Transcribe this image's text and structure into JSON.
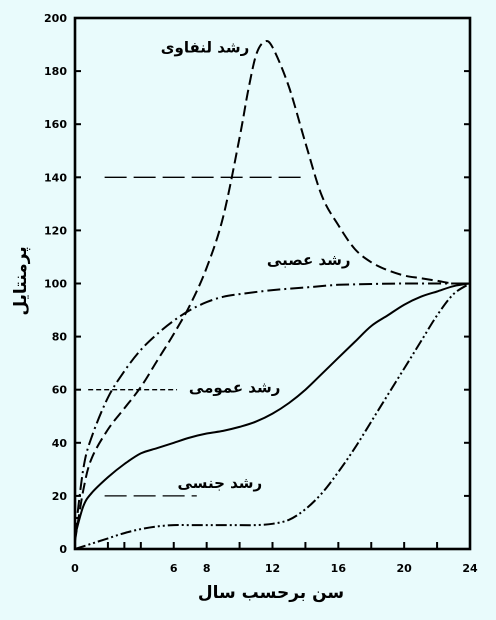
{
  "chart_data": {
    "type": "line",
    "xlabel": "سن برحسب سال",
    "ylabel": "پرمنتایل",
    "xlim": [
      0,
      24
    ],
    "ylim": [
      0,
      200
    ],
    "x_ticks": [
      0,
      6,
      8,
      12,
      16,
      20,
      24
    ],
    "x_minor_ticks": [
      2,
      3,
      4,
      10,
      14,
      18,
      22
    ],
    "y_ticks": [
      0,
      20,
      40,
      60,
      80,
      100,
      120,
      140,
      160,
      180,
      200
    ],
    "grid": false,
    "series": [
      {
        "name": "رشد لنفاوی",
        "style": "long-dash",
        "x": [
          0,
          0.5,
          1,
          2,
          3,
          4,
          5,
          6,
          7,
          8,
          9,
          10,
          10.5,
          11,
          11.5,
          12,
          13,
          14,
          15,
          16,
          17,
          18,
          19,
          20,
          21,
          22,
          23,
          24
        ],
        "y": [
          3,
          22,
          34,
          45,
          53,
          61,
          71,
          81,
          92,
          106,
          125,
          155,
          172,
          186,
          191,
          189,
          174,
          153,
          133,
          122,
          113,
          108,
          105,
          103,
          102,
          101,
          100,
          100
        ]
      },
      {
        "name": "رشد عصبی",
        "style": "dash-dot",
        "x": [
          0,
          0.5,
          1,
          2,
          3,
          4,
          5,
          6,
          7,
          8,
          9,
          10,
          12,
          14,
          16,
          18,
          20,
          22,
          24
        ],
        "y": [
          5,
          30,
          42,
          57,
          67,
          75,
          81,
          86,
          90,
          93,
          95,
          96,
          97.5,
          98.5,
          99.5,
          99.8,
          100,
          100,
          100
        ]
      },
      {
        "name": "رشد عمومی",
        "style": "solid",
        "x": [
          0,
          0.5,
          1,
          2,
          3,
          4,
          5,
          6,
          7,
          8,
          9,
          10,
          11,
          12,
          13,
          14,
          15,
          16,
          17,
          18,
          19,
          20,
          21,
          22,
          23,
          24
        ],
        "y": [
          5,
          16,
          21,
          27,
          32,
          36,
          38,
          40,
          42,
          43.5,
          44.5,
          46,
          48,
          51,
          55,
          60,
          66,
          72,
          78,
          84,
          88,
          92,
          95,
          97,
          99,
          100
        ]
      },
      {
        "name": "رشد جنسی",
        "style": "dash-dot-dot",
        "x": [
          0,
          1,
          2,
          3,
          4,
          5,
          6,
          7,
          8,
          9,
          10,
          11,
          12,
          13,
          14,
          15,
          16,
          17,
          18,
          19,
          20,
          21,
          22,
          23,
          24
        ],
        "y": [
          0,
          2,
          4,
          6,
          7.5,
          8.5,
          9,
          9,
          9,
          9,
          9,
          9,
          9.5,
          11,
          15,
          21,
          29,
          38,
          48,
          58,
          68,
          78,
          88,
          96,
          100
        ]
      }
    ],
    "reference_lines": [
      {
        "y": 140,
        "x_from": 1.8,
        "x_to": 14.1
      },
      {
        "y": 60,
        "x_from": 0.8,
        "x_to": 6.2
      },
      {
        "y": 20,
        "x_from": 1.8,
        "x_to": 7.4
      }
    ],
    "labels": [
      {
        "text": "رشد لنفاوی",
        "x": 7.9,
        "y": 187
      },
      {
        "text": "رشد عصبی",
        "x": 14.2,
        "y": 107
      },
      {
        "text": "رشد عمومی",
        "x": 9.7,
        "y": 59
      },
      {
        "text": "رشد جنسی",
        "x": 8.8,
        "y": 23
      }
    ],
    "colors": {
      "ink": "#000000",
      "background": "#e9fbfc"
    }
  }
}
